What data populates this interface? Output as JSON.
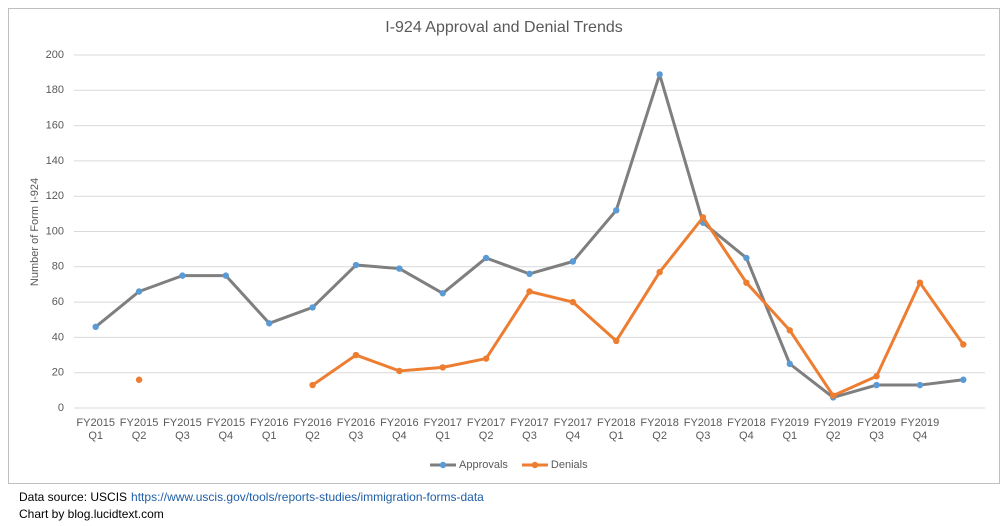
{
  "chart_data": {
    "type": "line",
    "title": "I-924 Approval and Denial Trends",
    "y_label": "Number of Form I-924",
    "categories": [
      "FY2015 Q1",
      "FY2015 Q2",
      "FY2015 Q3",
      "FY2015 Q4",
      "FY2016 Q1",
      "FY2016 Q2",
      "FY2016 Q3",
      "FY2016 Q4",
      "FY2017 Q1",
      "FY2017 Q2",
      "FY2017 Q3",
      "FY2017 Q4",
      "FY2018 Q1",
      "FY2018 Q2",
      "FY2018 Q3",
      "FY2018 Q4",
      "FY2019 Q1",
      "FY2019 Q2",
      "FY2019 Q3",
      "FY2019 Q4",
      null
    ],
    "series": [
      {
        "name": "Approvals",
        "color": "#7f7f7f",
        "marker_color": "#5b9bd5",
        "values": [
          46,
          66,
          75,
          75,
          48,
          57,
          81,
          79,
          65,
          85,
          76,
          83,
          112,
          189,
          105,
          85,
          25,
          6,
          13,
          13,
          16
        ]
      },
      {
        "name": "Denials",
        "color": "#ed7d31",
        "marker_color": "#ed7d31",
        "values": [
          null,
          16,
          null,
          null,
          null,
          13,
          30,
          21,
          23,
          28,
          66,
          60,
          38,
          77,
          108,
          71,
          44,
          7,
          18,
          71,
          36
        ]
      }
    ],
    "ylim": [
      0,
      200
    ],
    "yticks": [
      0,
      20,
      40,
      60,
      80,
      100,
      120,
      140,
      160,
      180,
      200
    ],
    "grid": true,
    "legend": "bottom"
  },
  "footer": {
    "source_label": "Data source: USCIS",
    "source_url": "https://www.uscis.gov/tools/reports-studies/immigration-forms-data",
    "credit": "Chart by blog.lucidtext.com"
  }
}
